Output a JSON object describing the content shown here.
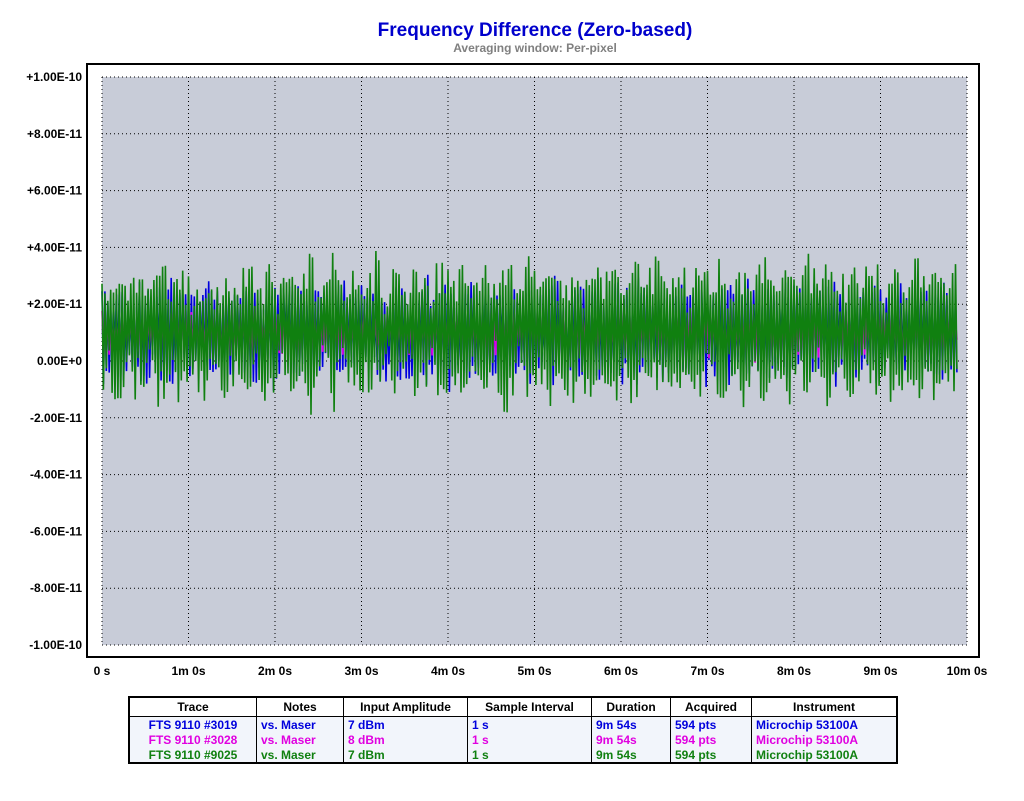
{
  "chart_data": {
    "type": "line",
    "title": "Frequency Difference (Zero-based)",
    "subtitle": "Averaging window: Per-pixel",
    "xlabel": "",
    "ylabel": "",
    "x_ticks": [
      "0 s",
      "1m 0s",
      "2m 0s",
      "3m 0s",
      "4m 0s",
      "5m 0s",
      "6m 0s",
      "7m 0s",
      "8m 0s",
      "9m 0s",
      "10m 0s"
    ],
    "y_ticks": [
      "+1.00E-10",
      "+8.00E-11",
      "+6.00E-11",
      "+4.00E-11",
      "+2.00E-11",
      "0.00E+0",
      "-2.00E-11",
      "-4.00E-11",
      "-6.00E-11",
      "-8.00E-11",
      "-1.00E-10"
    ],
    "xlim": [
      0,
      600
    ],
    "ylim": [
      -1e-10,
      1e-10
    ],
    "grid": true,
    "background_color": "#c8ccd8",
    "zero_label_color": "#0000cc",
    "series": [
      {
        "name": "FTS 9110 #3019",
        "color": "#0000dd",
        "mean": 1e-11,
        "amplitude": 1.8e-11,
        "noise": 4e-12,
        "seed": 11
      },
      {
        "name": "FTS 9110 #3028",
        "color": "#e000e0",
        "mean": 1e-11,
        "amplitude": 8e-12,
        "noise": 3e-12,
        "seed": 23
      },
      {
        "name": "FTS 9110 #9025",
        "color": "#108010",
        "mean": 1e-11,
        "amplitude": 2.4e-11,
        "noise": 6e-12,
        "seed": 37
      }
    ],
    "n_points": 594,
    "sample_interval_s": 1
  },
  "legend_table": {
    "headers": [
      "Trace",
      "Notes",
      "Input Amplitude",
      "Sample Interval",
      "Duration",
      "Acquired",
      "Instrument"
    ],
    "rows": [
      {
        "color": "#0000dd",
        "cells": [
          "FTS 9110 #3019",
          "vs. Maser",
          "7 dBm",
          "1 s",
          "9m 54s",
          "594 pts",
          "Microchip 53100A"
        ]
      },
      {
        "color": "#e000e0",
        "cells": [
          "FTS 9110 #3028",
          "vs. Maser",
          "8 dBm",
          "1 s",
          "9m 54s",
          "594 pts",
          "Microchip 53100A"
        ]
      },
      {
        "color": "#108010",
        "cells": [
          "FTS 9110 #9025",
          "vs. Maser",
          "7 dBm",
          "1 s",
          "9m 54s",
          "594 pts",
          "Microchip 53100A"
        ]
      }
    ]
  }
}
